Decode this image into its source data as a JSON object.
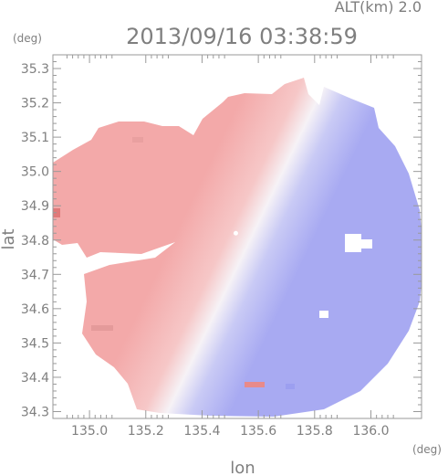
{
  "header": {
    "altitude_label": "ALT(km) 2.0",
    "datetime": "2013/09/16 03:38:59",
    "y_unit": "(deg)",
    "x_unit": "(deg)"
  },
  "chart_data": {
    "type": "heatmap",
    "title": "2013/09/16 03:38:59",
    "subtitle": "ALT(km) 2.0",
    "xlabel": "lon",
    "ylabel": "lat",
    "x_unit": "(deg)",
    "y_unit": "(deg)",
    "xlim": [
      134.87,
      136.18
    ],
    "ylim": [
      34.28,
      35.34
    ],
    "x_ticks": [
      {
        "value": 135.0,
        "label": "135.0"
      },
      {
        "value": 135.2,
        "label": "135.2"
      },
      {
        "value": 135.4,
        "label": "135.4"
      },
      {
        "value": 135.6,
        "label": "135.6"
      },
      {
        "value": 135.8,
        "label": "135.8"
      },
      {
        "value": 136.0,
        "label": "136.0"
      }
    ],
    "y_ticks": [
      {
        "value": 34.3,
        "label": "34.3"
      },
      {
        "value": 34.4,
        "label": "34.4"
      },
      {
        "value": 34.5,
        "label": "34.5"
      },
      {
        "value": 34.6,
        "label": "34.6"
      },
      {
        "value": 34.7,
        "label": "34.7"
      },
      {
        "value": 34.8,
        "label": "34.8"
      },
      {
        "value": 34.9,
        "label": "34.9"
      },
      {
        "value": 35.0,
        "label": "35.0"
      },
      {
        "value": 35.1,
        "label": "35.1"
      },
      {
        "value": 35.2,
        "label": "35.2"
      },
      {
        "value": 35.3,
        "label": "35.3"
      }
    ],
    "radar_center": {
      "lon": 135.52,
      "lat": 34.82
    },
    "radius_deg": {
      "lon": 0.68,
      "lat": 0.56
    },
    "colors": {
      "positive": "#f3a9a9",
      "negative": "#a8aaf2",
      "neutral": "#f6f2f6",
      "frame": "#9a9a9a",
      "text": "#7f7f7f"
    },
    "grid": false
  }
}
